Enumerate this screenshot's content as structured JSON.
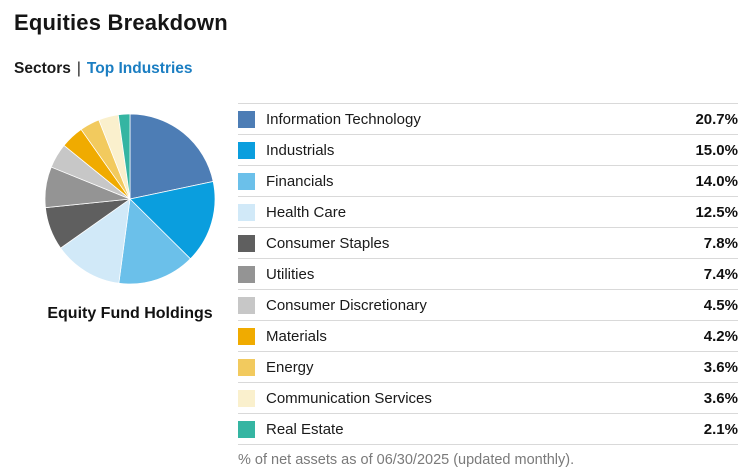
{
  "header": {
    "title": "Equities Breakdown"
  },
  "tabs": {
    "active_label": "Sectors",
    "separator": "|",
    "link_label": "Top Industries"
  },
  "pie": {
    "caption": "Equity Fund Holdings"
  },
  "footnote": "% of net assets as of 06/30/2025 (updated monthly).",
  "colors": {
    "link": "#1b7ec2",
    "text": "#1a1a1a",
    "muted": "#7a7a7a",
    "divider": "#d9d9d9"
  },
  "chart_data": {
    "type": "pie",
    "title": "Equity Fund Holdings",
    "unit": "%",
    "start_angle_deg": 0,
    "direction": "clockwise",
    "legend_position": "right-table",
    "segments": [
      {
        "label": "Information Technology",
        "value": 20.7,
        "display": "20.7%",
        "color": "#4d7db5"
      },
      {
        "label": "Industrials",
        "value": 15.0,
        "display": "15.0%",
        "color": "#0a9ede"
      },
      {
        "label": "Financials",
        "value": 14.0,
        "display": "14.0%",
        "color": "#6bc0ea"
      },
      {
        "label": "Health Care",
        "value": 12.5,
        "display": "12.5%",
        "color": "#d1e9f8"
      },
      {
        "label": "Consumer Staples",
        "value": 7.8,
        "display": "7.8%",
        "color": "#5f5f5f"
      },
      {
        "label": "Utilities",
        "value": 7.4,
        "display": "7.4%",
        "color": "#949494"
      },
      {
        "label": "Consumer Discretionary",
        "value": 4.5,
        "display": "4.5%",
        "color": "#c7c7c7"
      },
      {
        "label": "Materials",
        "value": 4.2,
        "display": "4.2%",
        "color": "#f0ab00"
      },
      {
        "label": "Energy",
        "value": 3.6,
        "display": "3.6%",
        "color": "#f2ca5e"
      },
      {
        "label": "Communication Services",
        "value": 3.6,
        "display": "3.6%",
        "color": "#faf0cd"
      },
      {
        "label": "Real Estate",
        "value": 2.1,
        "display": "2.1%",
        "color": "#35b5a2"
      }
    ]
  }
}
